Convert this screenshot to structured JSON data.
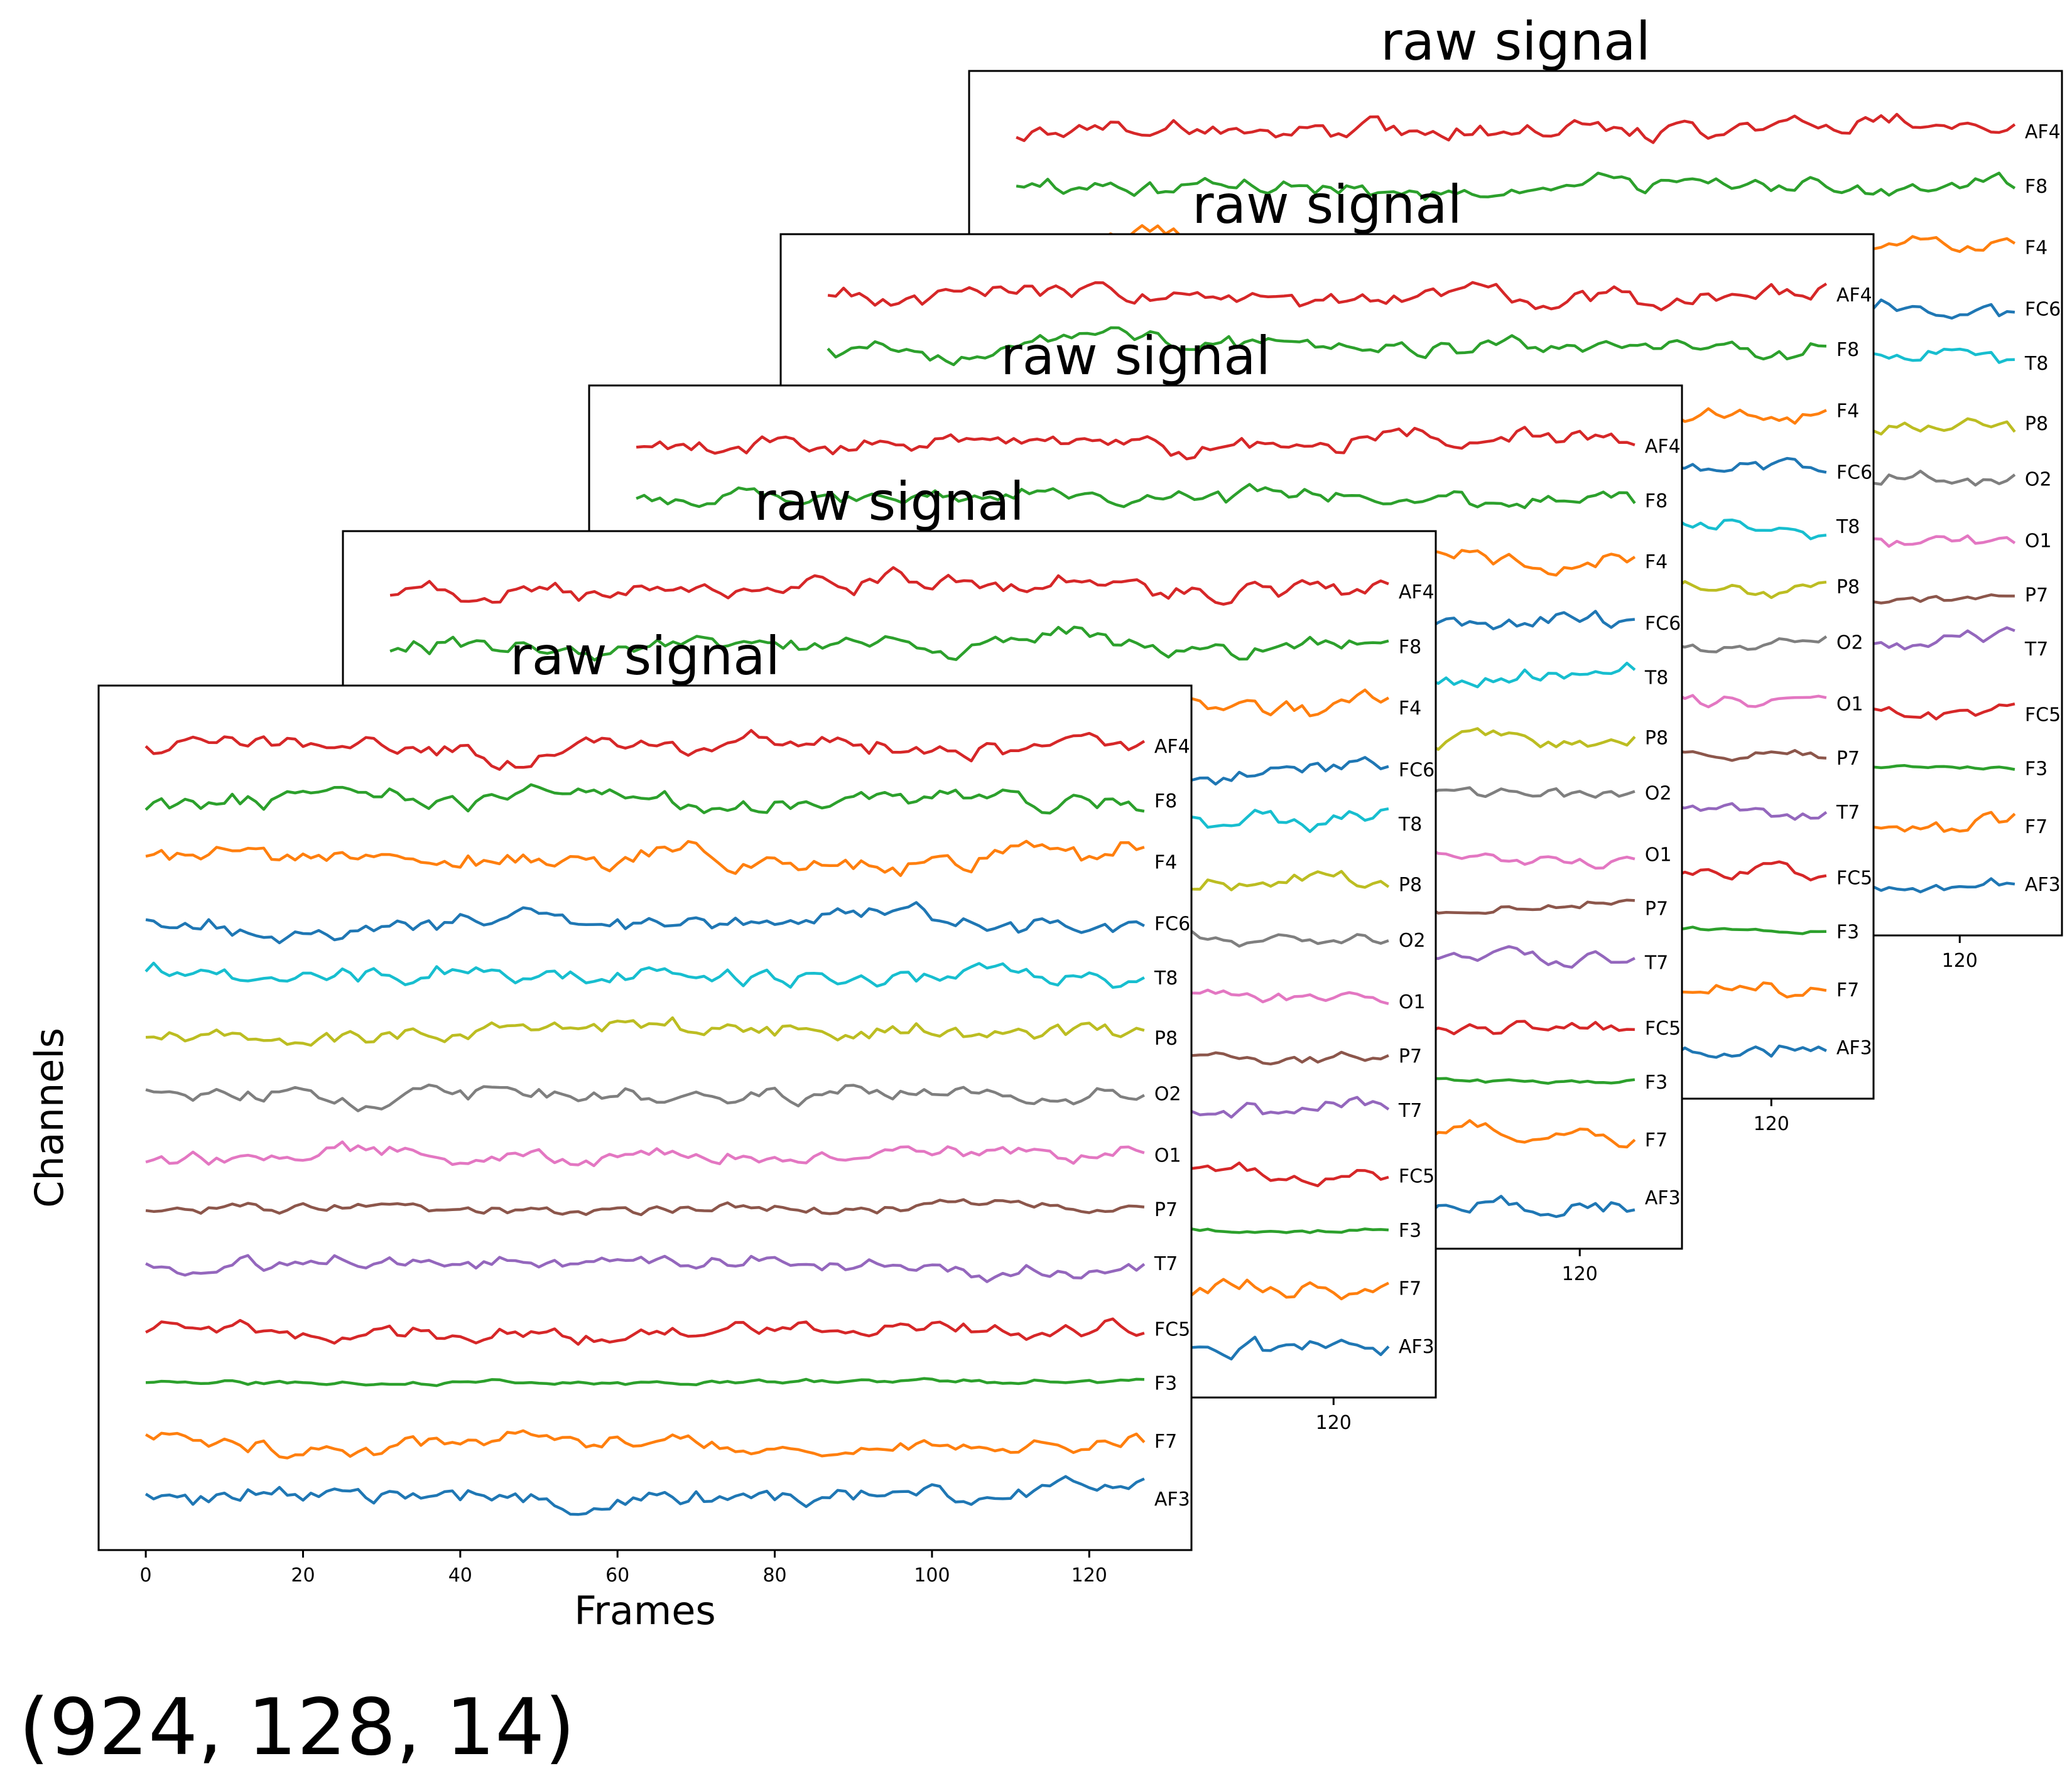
{
  "figure": {
    "caption": "(924, 128, 14)"
  },
  "chart_data": {
    "type": "line",
    "panel_count": 5,
    "title": "raw signal",
    "xlabel": "Frames",
    "ylabel": "Channels",
    "xlim": [
      -6,
      133
    ],
    "xticks": [
      0,
      20,
      40,
      60,
      80,
      100,
      120
    ],
    "back_panel_xticks": [
      120
    ],
    "frames": 128,
    "channels": [
      {
        "name": "AF4",
        "color": "#d62728"
      },
      {
        "name": "F8",
        "color": "#2ca02c"
      },
      {
        "name": "F4",
        "color": "#ff7f0e"
      },
      {
        "name": "FC6",
        "color": "#1f77b4"
      },
      {
        "name": "T8",
        "color": "#17becf"
      },
      {
        "name": "P8",
        "color": "#bcbd22"
      },
      {
        "name": "O2",
        "color": "#7f7f7f"
      },
      {
        "name": "O1",
        "color": "#e377c2"
      },
      {
        "name": "P7",
        "color": "#8c564b"
      },
      {
        "name": "T7",
        "color": "#9467bd"
      },
      {
        "name": "FC5",
        "color": "#d62728"
      },
      {
        "name": "F3",
        "color": "#2ca02c"
      },
      {
        "name": "F7",
        "color": "#ff7f0e"
      },
      {
        "name": "AF3",
        "color": "#1f77b4"
      }
    ]
  }
}
